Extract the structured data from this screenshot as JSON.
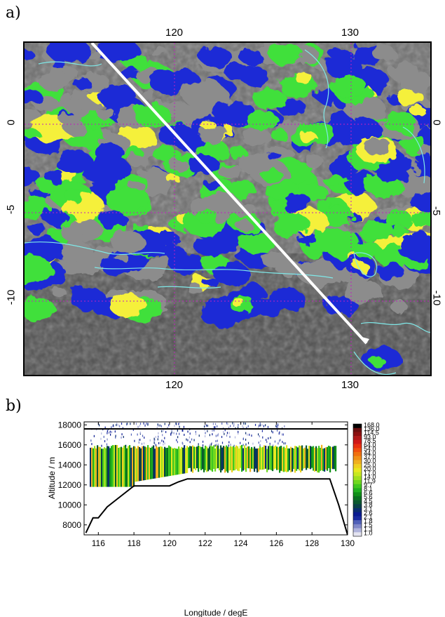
{
  "panel_a": {
    "label": "a)",
    "top_ticks": [
      "120",
      "130"
    ],
    "bottom_ticks": [
      "120",
      "130"
    ],
    "left_ticks": [
      "0",
      "-5",
      "-10"
    ],
    "right_ticks": [
      "0",
      "-5",
      "-10"
    ],
    "colors": {
      "low_cloud": "#8c8c8c",
      "mid": "#1f2bd6",
      "high": "#3fe03a",
      "very_high": "#f5f03a",
      "coast": "#7fe8e8",
      "track": "#ffffff",
      "grid": "#c020c0"
    }
  },
  "panel_b": {
    "label": "b)"
  },
  "chart_data": {
    "type": "heatmap",
    "xlabel": "Longitude / degE",
    "ylabel": "Altitude / m",
    "x_ticks": [
      116,
      118,
      120,
      122,
      124,
      126,
      128,
      130
    ],
    "y_ticks": [
      8000,
      10000,
      12000,
      14000,
      16000,
      18000
    ],
    "xlim": [
      115.2,
      130
    ],
    "ylim": [
      7000,
      18300
    ],
    "colorbar_labels": [
      "168.0",
      "136.0",
      "114.5",
      "93.0",
      "78.5",
      "64.0",
      "54.0",
      "44.0",
      "37.0",
      "30.0",
      "25.0",
      "20.0",
      "17.0",
      "14.0",
      "11.9",
      "9.7",
      "8.1",
      "6.6",
      "5.6",
      "4.5",
      "3.8",
      "3.1",
      "2.6",
      "2.1",
      "1.8",
      "1.5",
      "1.3",
      "1.0"
    ],
    "colorbar_colors": [
      "#000000",
      "#6b0f0f",
      "#8b1010",
      "#b01818",
      "#d01818",
      "#e83010",
      "#f05010",
      "#f07010",
      "#f09018",
      "#f0b020",
      "#f0d020",
      "#e8e820",
      "#c8e820",
      "#a0e020",
      "#70d820",
      "#40c820",
      "#20b020",
      "#109018",
      "#0a7020",
      "#0a5830",
      "#0a4048",
      "#0a2c70",
      "#0a1a90",
      "#1a2aa0",
      "#5060b8",
      "#8088c8",
      "#b0b4dc",
      "#e4e4f0"
    ],
    "series": [
      {
        "name": "",
        "x": [
          115.3,
          115.7,
          116.0,
          116.5,
          117.0,
          118.0,
          120.0,
          120.5,
          121.0,
          129.0,
          129.5,
          130.0
        ],
        "y": [
          7200,
          8700,
          8700,
          9800,
          10500,
          11900,
          11900,
          12300,
          12600,
          12600,
          10000,
          7000
        ]
      },
      {
        "name": "",
        "x": [
          115.2,
          130.0
        ],
        "y": [
          17600,
          17600
        ]
      }
    ]
  }
}
